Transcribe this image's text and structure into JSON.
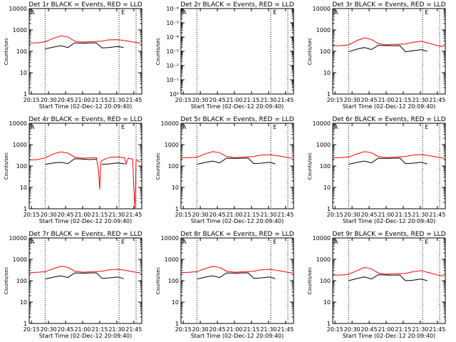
{
  "colors": {
    "events": "#000000",
    "lld": "#ff0000",
    "background": "#ffffff"
  },
  "shared": {
    "ylabel": "Counts/sec",
    "xlabel": "Start Time (02-Dec-12 20:09:40)",
    "time_ticks": [
      "20:15",
      "20:30",
      "20:45",
      "21:00",
      "21:15",
      "21:30",
      "21:45"
    ],
    "time_tick_minutes": [
      15,
      30,
      45,
      60,
      75,
      90,
      105
    ],
    "xlim_minutes": [
      13,
      112
    ],
    "vlines_minutes": [
      27,
      92,
      107
    ],
    "marker_labels": {
      "A": "A",
      "E": "E"
    },
    "y_ticks_std": [
      "1",
      "10",
      "100",
      "1000",
      "10000"
    ],
    "y_ticks_det2": [
      "10⁰",
      "10⁻¹",
      "10⁻²",
      "10⁻³",
      "10⁻⁴",
      "10⁻⁵",
      "10⁻⁶"
    ]
  },
  "chart_data": [
    {
      "type": "line",
      "title": "Det 1r BLACK = Events, RED = LLD",
      "scale": "log",
      "ylim": [
        1,
        10000
      ],
      "x": [
        13,
        20,
        27,
        35,
        41,
        47,
        53,
        60,
        66,
        72,
        77,
        83,
        91,
        96,
        100,
        105,
        111
      ],
      "series": [
        {
          "name": "LLD",
          "color": "red",
          "values": [
            250,
            250,
            280,
            420,
            530,
            470,
            300,
            270,
            280,
            290,
            300,
            345,
            350,
            320,
            300,
            270,
            240
          ]
        },
        {
          "name": "Events",
          "color": "black",
          "values": [
            null,
            null,
            130,
            160,
            180,
            150,
            250,
            240,
            245,
            250,
            145,
            150,
            170,
            150,
            null,
            null,
            null
          ]
        }
      ]
    },
    {
      "type": "line",
      "title": "Det 2r BLACK = Events, RED = LLD",
      "scale": "log",
      "ylim": [
        1,
        1e-06
      ],
      "x": [
        13,
        20,
        27,
        35,
        41,
        47,
        53,
        60,
        66,
        72,
        77,
        83,
        91,
        96,
        100,
        105,
        111
      ],
      "series": []
    },
    {
      "type": "line",
      "title": "Det 3r BLACK = Events, RED = LLD",
      "scale": "log",
      "ylim": [
        1,
        10000
      ],
      "x": [
        13,
        20,
        27,
        35,
        41,
        47,
        53,
        60,
        66,
        72,
        77,
        83,
        91,
        96,
        100,
        105,
        111
      ],
      "series": [
        {
          "name": "LLD",
          "color": "red",
          "values": [
            180,
            185,
            200,
            330,
            420,
            360,
            230,
            200,
            210,
            215,
            220,
            260,
            300,
            250,
            220,
            185,
            165
          ]
        },
        {
          "name": "Events",
          "color": "black",
          "values": [
            null,
            null,
            95,
            130,
            150,
            120,
            190,
            185,
            180,
            185,
            95,
            105,
            120,
            100,
            null,
            null,
            null
          ]
        }
      ]
    },
    {
      "type": "line",
      "title": "Det 4r BLACK = Events, RED = LLD",
      "scale": "log",
      "ylim": [
        1,
        10000
      ],
      "x": [
        13,
        20,
        27,
        35,
        41,
        47,
        53,
        60,
        66,
        72,
        74,
        75,
        76,
        77,
        83,
        91,
        97,
        98,
        100,
        104,
        105,
        106,
        107,
        111
      ],
      "series": [
        {
          "name": "LLD",
          "color": "red",
          "values": [
            190,
            200,
            240,
            380,
            460,
            400,
            260,
            230,
            240,
            250,
            60,
            8,
            150,
            180,
            250,
            270,
            240,
            120,
            230,
            210,
            10,
            1,
            200,
            150
          ]
        },
        {
          "name": "Events",
          "color": "black",
          "values": [
            null,
            null,
            120,
            140,
            150,
            130,
            220,
            210,
            200,
            210,
            null,
            null,
            null,
            120,
            125,
            140,
            125,
            null,
            null,
            null,
            null,
            null,
            null,
            null
          ]
        }
      ]
    },
    {
      "type": "line",
      "title": "Det 5r BLACK = Events, RED = LLD",
      "scale": "log",
      "ylim": [
        1,
        10000
      ],
      "x": [
        13,
        20,
        27,
        35,
        41,
        47,
        53,
        60,
        66,
        72,
        77,
        83,
        91,
        96,
        100,
        105,
        111
      ],
      "series": [
        {
          "name": "LLD",
          "color": "red",
          "values": [
            240,
            245,
            260,
            380,
            470,
            420,
            280,
            250,
            260,
            270,
            280,
            320,
            340,
            310,
            290,
            260,
            230
          ]
        },
        {
          "name": "Events",
          "color": "black",
          "values": [
            null,
            null,
            120,
            150,
            170,
            140,
            230,
            225,
            230,
            235,
            130,
            135,
            150,
            125,
            null,
            null,
            null
          ]
        }
      ]
    },
    {
      "type": "line",
      "title": "Det 6r BLACK = Events, RED = LLD",
      "scale": "log",
      "ylim": [
        1,
        10000
      ],
      "x": [
        13,
        20,
        27,
        35,
        41,
        47,
        53,
        60,
        66,
        72,
        77,
        83,
        91,
        96,
        100,
        105,
        111
      ],
      "series": [
        {
          "name": "LLD",
          "color": "red",
          "values": [
            240,
            245,
            265,
            380,
            470,
            420,
            280,
            250,
            260,
            270,
            280,
            320,
            345,
            315,
            290,
            260,
            230
          ]
        },
        {
          "name": "Events",
          "color": "black",
          "values": [
            null,
            null,
            120,
            150,
            170,
            140,
            230,
            225,
            230,
            235,
            130,
            135,
            150,
            125,
            null,
            null,
            null
          ]
        }
      ]
    },
    {
      "type": "line",
      "title": "Det 7r BLACK = Events, RED = LLD",
      "scale": "log",
      "ylim": [
        1,
        10000
      ],
      "x": [
        13,
        20,
        27,
        35,
        41,
        47,
        53,
        60,
        66,
        72,
        77,
        83,
        91,
        96,
        100,
        105,
        111
      ],
      "series": [
        {
          "name": "LLD",
          "color": "red",
          "values": [
            240,
            245,
            265,
            380,
            480,
            420,
            280,
            250,
            260,
            270,
            280,
            320,
            345,
            315,
            290,
            260,
            230
          ]
        },
        {
          "name": "Events",
          "color": "black",
          "values": [
            null,
            null,
            120,
            150,
            170,
            140,
            230,
            225,
            230,
            235,
            130,
            135,
            150,
            125,
            null,
            null,
            null
          ]
        }
      ]
    },
    {
      "type": "line",
      "title": "Det 8r BLACK = Events, RED = LLD",
      "scale": "log",
      "ylim": [
        1,
        10000
      ],
      "x": [
        13,
        20,
        27,
        35,
        41,
        47,
        53,
        60,
        66,
        72,
        77,
        83,
        91,
        96,
        100,
        105,
        111
      ],
      "series": [
        {
          "name": "LLD",
          "color": "red",
          "values": [
            240,
            245,
            265,
            380,
            470,
            420,
            280,
            250,
            260,
            270,
            280,
            320,
            345,
            315,
            290,
            260,
            230
          ]
        },
        {
          "name": "Events",
          "color": "black",
          "values": [
            null,
            null,
            120,
            150,
            170,
            140,
            230,
            225,
            230,
            235,
            130,
            135,
            150,
            125,
            null,
            null,
            null
          ]
        }
      ]
    },
    {
      "type": "line",
      "title": "Det 9r BLACK = Events, RED = LLD",
      "scale": "log",
      "ylim": [
        1,
        10000
      ],
      "x": [
        13,
        20,
        27,
        35,
        41,
        47,
        53,
        60,
        66,
        72,
        77,
        83,
        91,
        96,
        100,
        105,
        111
      ],
      "series": [
        {
          "name": "LLD",
          "color": "red",
          "values": [
            180,
            185,
            200,
            310,
            420,
            360,
            230,
            200,
            210,
            215,
            220,
            260,
            300,
            250,
            220,
            185,
            165
          ]
        },
        {
          "name": "Events",
          "color": "black",
          "values": [
            null,
            null,
            100,
            130,
            150,
            120,
            190,
            185,
            180,
            185,
            100,
            105,
            120,
            100,
            null,
            null,
            null
          ]
        }
      ]
    }
  ]
}
